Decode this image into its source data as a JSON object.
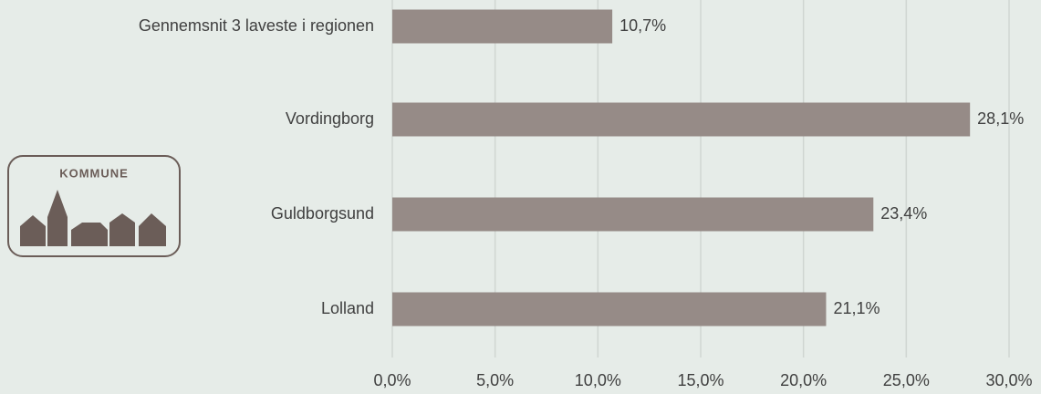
{
  "chart_data": {
    "type": "barh",
    "categories": [
      "Gennemsnit 3 laveste i regionen",
      "Vordingborg",
      "Guldborgsund",
      "Lolland"
    ],
    "values": [
      10.7,
      28.1,
      23.4,
      21.1
    ],
    "value_labels": [
      "10,7%",
      "28,1%",
      "23,4%",
      "21,1%"
    ],
    "color": "#968b87",
    "xlim": [
      0,
      30
    ],
    "xticks": [
      {
        "value": 0,
        "label": "0,0%"
      },
      {
        "value": 5,
        "label": "5,0%"
      },
      {
        "value": 10,
        "label": "10,0%"
      },
      {
        "value": 15,
        "label": "15,0%"
      },
      {
        "value": 20,
        "label": "20,0%"
      },
      {
        "value": 25,
        "label": "25,0%"
      },
      {
        "value": 30,
        "label": "30,0%"
      }
    ],
    "grid": true,
    "logo": "KOMMUNE"
  }
}
